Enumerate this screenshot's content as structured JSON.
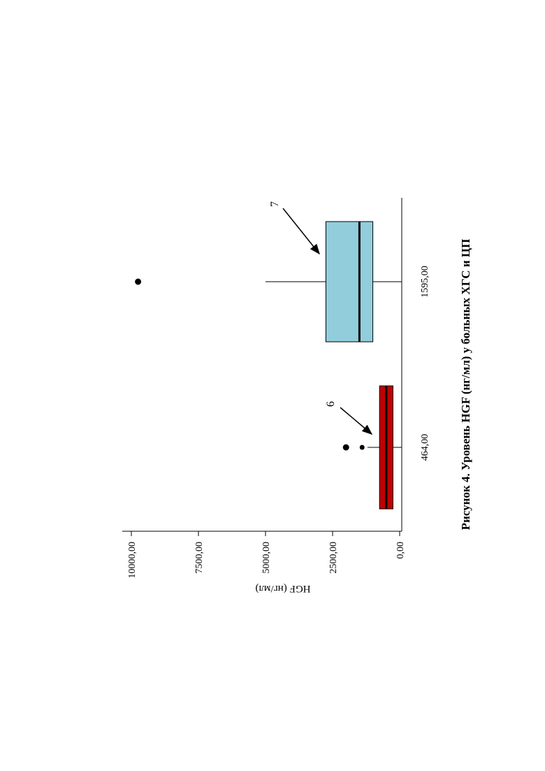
{
  "chart_data": {
    "type": "boxplot",
    "title": "Рисунок 4. Уровень HGF (нг/мл) у больных ХГС и ЦП",
    "xlabel": "",
    "ylabel": "HGF (нг/мл)",
    "ylim": [
      0,
      10000
    ],
    "y_ticks": [
      0,
      2500,
      5000,
      7500,
      10000
    ],
    "y_tick_labels": [
      "0,00",
      "2500,00",
      "5000,00",
      "7500,00",
      "10000,00"
    ],
    "categories": [
      "464,00",
      "1595,00"
    ],
    "boxes": [
      {
        "category": "464,00",
        "whisker_low": 0,
        "q1": 250,
        "median": 500,
        "q3": 750,
        "whisker_high": 1200,
        "outliers": [
          1400,
          2000
        ],
        "color": "#c00000",
        "annotation": "6"
      },
      {
        "category": "1595,00",
        "whisker_low": 0,
        "q1": 1000,
        "median": 1500,
        "q3": 2750,
        "whisker_high": 5000,
        "outliers": [
          9750
        ],
        "color": "#92cddc",
        "annotation": "7"
      }
    ],
    "grid": false,
    "orientation": "rotated-90-counterclockwise"
  }
}
